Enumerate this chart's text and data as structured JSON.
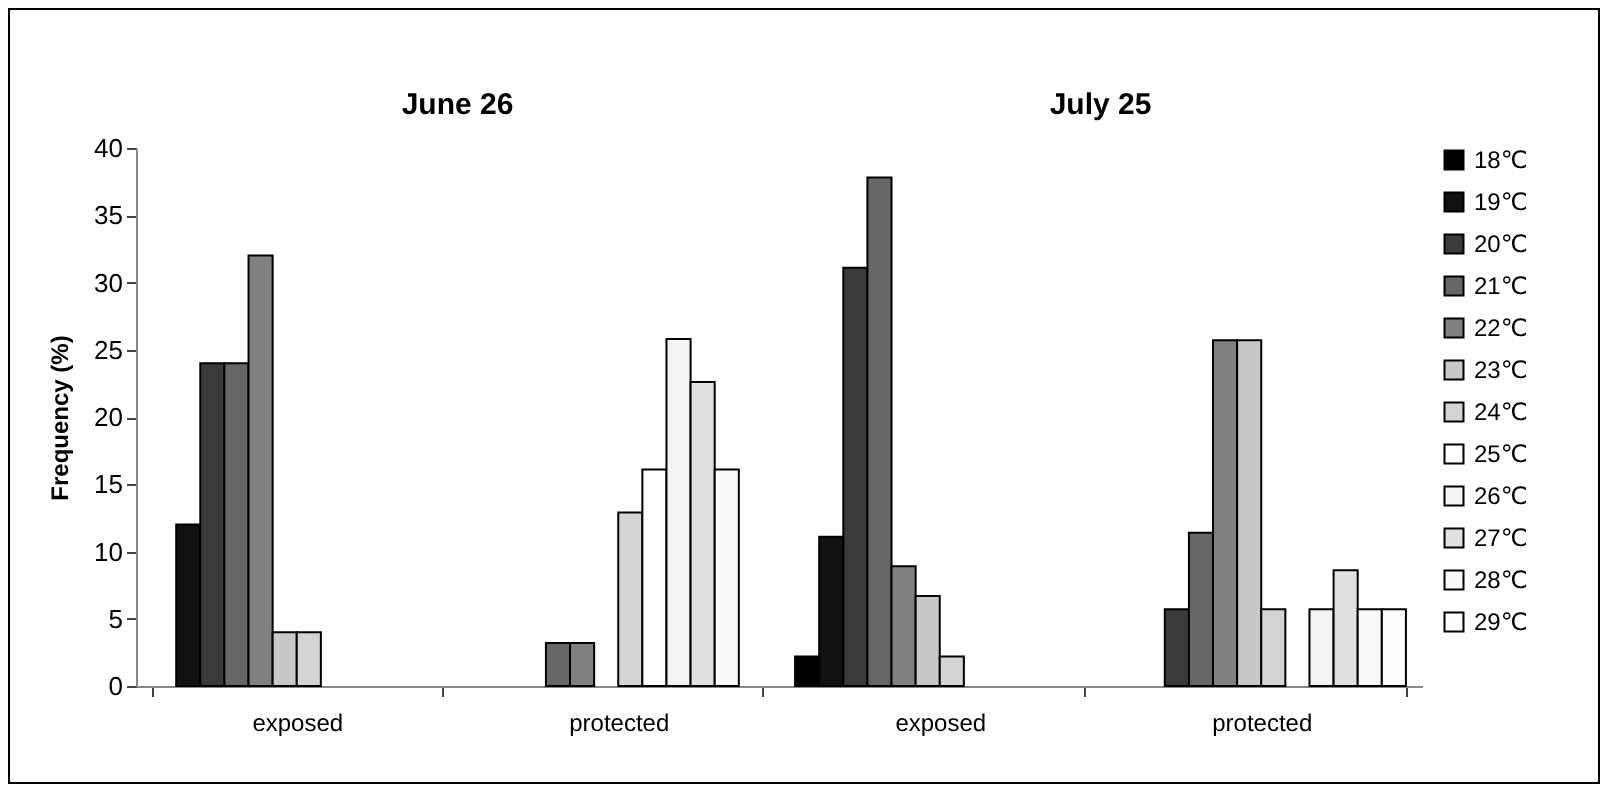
{
  "chart_data": {
    "type": "bar",
    "annotations": [
      "June 26",
      "July 25"
    ],
    "ylabel": "Frequency (%)",
    "categories": [
      "exposed",
      "protected",
      "exposed",
      "protected"
    ],
    "ylim": [
      0,
      40
    ],
    "yticks": [
      0,
      5,
      10,
      15,
      20,
      25,
      30,
      35,
      40
    ],
    "grid": false,
    "legend": "right",
    "series": [
      {
        "name": "18℃",
        "color": "#000000",
        "values": [
          null,
          null,
          2.2,
          null
        ]
      },
      {
        "name": "19℃",
        "color": "#111111",
        "values": [
          12,
          null,
          11.1,
          null
        ]
      },
      {
        "name": "20℃",
        "color": "#3a3a3a",
        "values": [
          24,
          null,
          31.1,
          5.7
        ]
      },
      {
        "name": "21℃",
        "color": "#666666",
        "values": [
          24,
          3.2,
          37.8,
          11.4
        ]
      },
      {
        "name": "22℃",
        "color": "#808080",
        "values": [
          32,
          3.2,
          8.9,
          25.7
        ]
      },
      {
        "name": "23℃",
        "color": "#c8c8c8",
        "values": [
          4,
          null,
          6.7,
          25.7
        ]
      },
      {
        "name": "24℃",
        "color": "#d4d4d4",
        "values": [
          4,
          12.9,
          2.2,
          5.7
        ]
      },
      {
        "name": "25℃",
        "color": "#ffffff",
        "values": [
          null,
          16.1,
          null,
          null
        ]
      },
      {
        "name": "26℃",
        "color": "#f4f4f4",
        "values": [
          null,
          25.8,
          null,
          5.7
        ]
      },
      {
        "name": "27℃",
        "color": "#e0e0e0",
        "values": [
          null,
          22.6,
          null,
          8.6
        ]
      },
      {
        "name": "28℃",
        "color": "#fafafa",
        "values": [
          null,
          16.1,
          null,
          5.7
        ]
      },
      {
        "name": "29℃",
        "color": "#fefefe",
        "values": [
          null,
          null,
          null,
          5.7
        ]
      }
    ]
  }
}
